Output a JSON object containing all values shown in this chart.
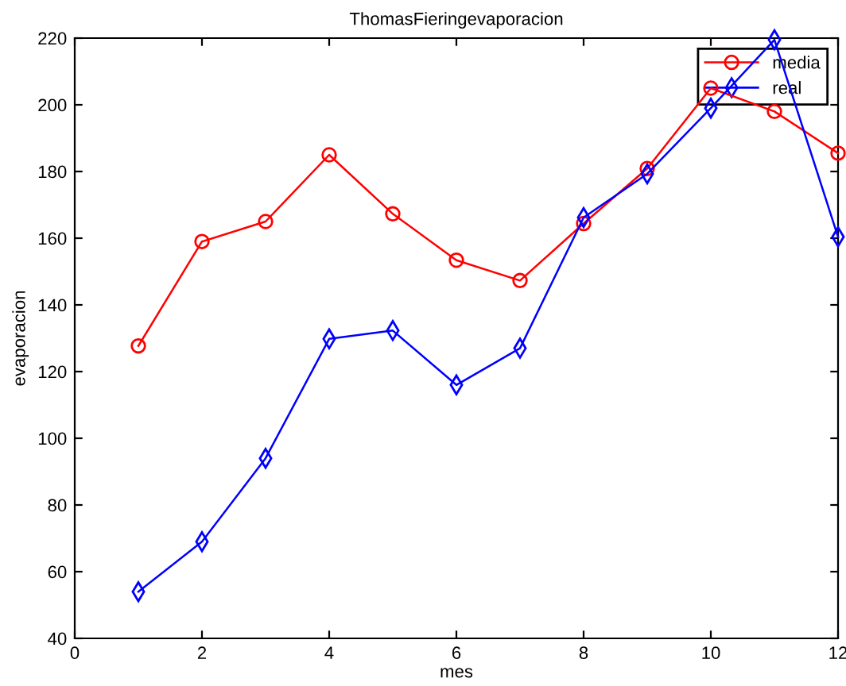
{
  "chart_data": {
    "type": "line",
    "title": "ThomasFieringevaporacion",
    "xlabel": "mes",
    "ylabel": "evaporacion",
    "x": [
      1,
      2,
      3,
      4,
      5,
      6,
      7,
      8,
      9,
      10,
      11,
      12
    ],
    "series": [
      {
        "name": "media",
        "color": "#ff0000",
        "marker": "circle",
        "values": [
          127.7,
          159,
          165,
          185,
          167.3,
          153.4,
          147.3,
          164.4,
          180.9,
          205,
          198,
          185.5
        ]
      },
      {
        "name": "real",
        "color": "#0000ff",
        "marker": "diamond",
        "values": [
          54,
          69,
          94,
          129.8,
          132.3,
          116,
          127,
          166.2,
          179.3,
          199,
          219.5,
          160.4
        ]
      }
    ],
    "xlim": [
      0,
      12
    ],
    "xticks": [
      0,
      2,
      4,
      6,
      8,
      10,
      12
    ],
    "ylim": [
      40,
      220
    ],
    "yticks": [
      40,
      60,
      80,
      100,
      120,
      140,
      160,
      180,
      200,
      220
    ],
    "grid": false,
    "legend": "top right",
    "line_style": "solid"
  }
}
